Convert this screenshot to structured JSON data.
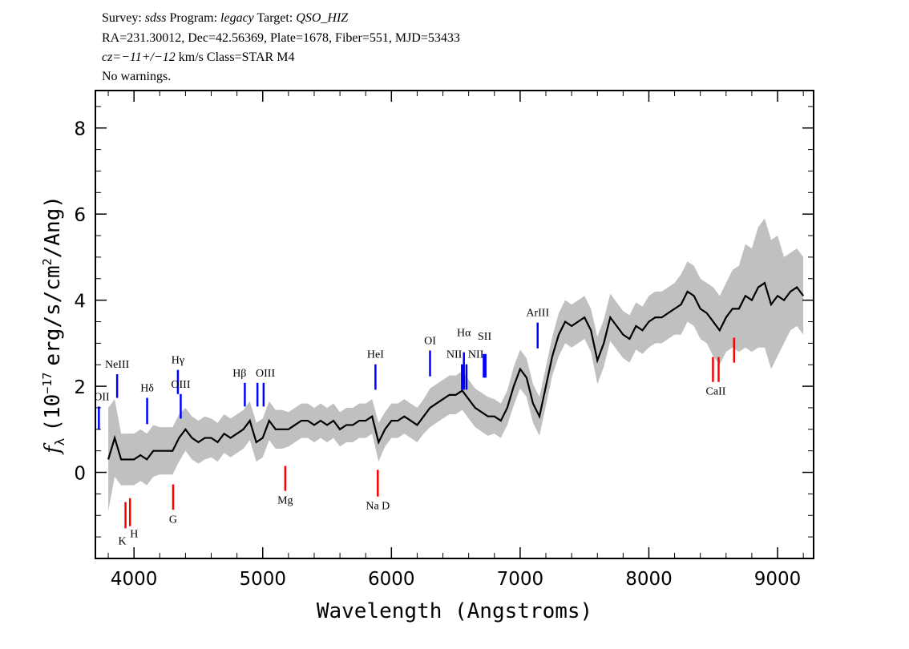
{
  "header": {
    "line1": {
      "survey_label": "Survey:",
      "survey": "sdss",
      "program_label": "Program:",
      "program": "legacy",
      "target_label": "Target:",
      "target": "QSO_HIZ"
    },
    "line2": "RA=231.30012, Dec=42.56369, Plate=1678, Fiber=551, MJD=53433",
    "line3": {
      "cz": "cz=−11+/−12",
      "rest": "km/s Class=STAR M4"
    },
    "line4": "No warnings."
  },
  "chart_data": {
    "type": "line",
    "xlabel": "Wavelength (Angstroms)",
    "ylabel": {
      "symbol": "f",
      "sub": "λ",
      "pre": "(10",
      "exp": "−17",
      "mid": "erg/s/cm",
      "exp2": "2",
      "post": "/Ang)"
    },
    "xlim": [
      3700,
      9280
    ],
    "ylim": [
      -2.0,
      8.87
    ],
    "xticks": [
      "4000",
      "5000",
      "6000",
      "7000",
      "8000",
      "9000"
    ],
    "yticks": [
      "0",
      "2",
      "4",
      "6",
      "8"
    ],
    "colors": {
      "flux": "#000000",
      "error_band": "#c0c0c0",
      "emission": "#0000ff",
      "absorption": "#ff0000"
    },
    "series": {
      "x": [
        3800,
        3850,
        3900,
        3950,
        4000,
        4050,
        4100,
        4150,
        4200,
        4250,
        4300,
        4350,
        4400,
        4450,
        4500,
        4550,
        4600,
        4650,
        4700,
        4750,
        4800,
        4850,
        4900,
        4950,
        5000,
        5050,
        5100,
        5150,
        5200,
        5250,
        5300,
        5350,
        5400,
        5450,
        5500,
        5550,
        5600,
        5650,
        5700,
        5750,
        5800,
        5850,
        5900,
        5950,
        6000,
        6050,
        6100,
        6150,
        6200,
        6250,
        6300,
        6350,
        6400,
        6450,
        6500,
        6550,
        6600,
        6650,
        6700,
        6750,
        6800,
        6850,
        6900,
        6950,
        7000,
        7050,
        7100,
        7150,
        7200,
        7250,
        7300,
        7350,
        7400,
        7450,
        7500,
        7550,
        7600,
        7650,
        7700,
        7750,
        7800,
        7850,
        7900,
        7950,
        8000,
        8050,
        8100,
        8150,
        8200,
        8250,
        8300,
        8350,
        8400,
        8450,
        8500,
        8550,
        8600,
        8650,
        8700,
        8750,
        8800,
        8850,
        8900,
        8950,
        9000,
        9050,
        9100,
        9150,
        9200
      ],
      "flux": [
        0.3,
        0.8,
        0.3,
        0.3,
        0.3,
        0.4,
        0.3,
        0.5,
        0.5,
        0.5,
        0.5,
        0.8,
        1.0,
        0.8,
        0.7,
        0.8,
        0.8,
        0.7,
        0.9,
        0.8,
        0.9,
        1.0,
        1.2,
        0.7,
        0.8,
        1.2,
        1.0,
        1.0,
        1.0,
        1.1,
        1.2,
        1.2,
        1.1,
        1.2,
        1.1,
        1.2,
        1.0,
        1.1,
        1.1,
        1.2,
        1.2,
        1.3,
        0.7,
        1.0,
        1.2,
        1.2,
        1.3,
        1.2,
        1.1,
        1.3,
        1.5,
        1.6,
        1.7,
        1.8,
        1.8,
        1.9,
        1.7,
        1.5,
        1.4,
        1.3,
        1.3,
        1.2,
        1.5,
        2.0,
        2.4,
        2.2,
        1.6,
        1.3,
        2.0,
        2.7,
        3.2,
        3.5,
        3.4,
        3.5,
        3.6,
        3.3,
        2.6,
        3.0,
        3.6,
        3.4,
        3.2,
        3.1,
        3.4,
        3.3,
        3.5,
        3.6,
        3.6,
        3.7,
        3.8,
        3.9,
        4.2,
        4.1,
        3.8,
        3.7,
        3.5,
        3.3,
        3.6,
        3.8,
        3.8,
        4.1,
        4.0,
        4.3,
        4.4,
        3.9,
        4.1,
        4.0,
        4.2,
        4.3,
        4.1
      ],
      "error": [
        1.2,
        0.9,
        0.6,
        0.6,
        0.6,
        0.6,
        0.6,
        0.6,
        0.55,
        0.55,
        0.55,
        0.55,
        0.5,
        0.5,
        0.5,
        0.5,
        0.45,
        0.45,
        0.45,
        0.45,
        0.45,
        0.45,
        0.45,
        0.45,
        0.45,
        0.45,
        0.45,
        0.45,
        0.4,
        0.4,
        0.4,
        0.4,
        0.4,
        0.4,
        0.4,
        0.4,
        0.4,
        0.4,
        0.4,
        0.4,
        0.4,
        0.4,
        0.45,
        0.4,
        0.4,
        0.4,
        0.4,
        0.4,
        0.4,
        0.4,
        0.45,
        0.45,
        0.45,
        0.45,
        0.45,
        0.45,
        0.45,
        0.45,
        0.45,
        0.45,
        0.4,
        0.4,
        0.4,
        0.45,
        0.45,
        0.45,
        0.45,
        0.45,
        0.45,
        0.45,
        0.5,
        0.5,
        0.5,
        0.5,
        0.5,
        0.5,
        0.55,
        0.55,
        0.55,
        0.55,
        0.55,
        0.55,
        0.55,
        0.55,
        0.6,
        0.6,
        0.6,
        0.6,
        0.6,
        0.7,
        0.7,
        0.7,
        0.7,
        0.7,
        0.8,
        0.8,
        0.8,
        0.9,
        1.0,
        1.2,
        1.2,
        1.4,
        1.5,
        1.5,
        1.4,
        1.0,
        0.9,
        0.9,
        0.9
      ]
    },
    "lines": [
      {
        "label": "OII",
        "kind": "emission",
        "wavelengths": [
          3727
        ],
        "y": [
          0.99,
          1.53
        ]
      },
      {
        "label": "NeIII",
        "kind": "emission",
        "wavelengths": [
          3869
        ],
        "y": [
          1.73,
          2.28
        ]
      },
      {
        "label": "Hδ",
        "kind": "emission",
        "wavelengths": [
          4102
        ],
        "y": [
          1.12,
          1.73
        ]
      },
      {
        "label": "Hγ",
        "kind": "emission",
        "wavelengths": [
          4341
        ],
        "y": [
          1.82,
          2.38
        ]
      },
      {
        "label": "OIII",
        "kind": "emission",
        "wavelengths": [
          4363
        ],
        "y": [
          1.25,
          1.82
        ]
      },
      {
        "label": "Hβ",
        "kind": "emission",
        "wavelengths": [
          4861
        ],
        "y": [
          1.53,
          2.08
        ]
      },
      {
        "label": "OIII",
        "kind": "emission",
        "wavelengths": [
          4959,
          5007
        ],
        "y": [
          1.53,
          2.08
        ]
      },
      {
        "label": "HeI",
        "kind": "emission",
        "wavelengths": [
          5876
        ],
        "y": [
          1.92,
          2.51
        ]
      },
      {
        "label": "OI",
        "kind": "emission",
        "wavelengths": [
          6300
        ],
        "y": [
          2.23,
          2.83
        ]
      },
      {
        "label": "NII",
        "kind": "emission",
        "wavelengths": [
          6548
        ],
        "y": [
          1.92,
          2.51
        ]
      },
      {
        "label": "Hα",
        "kind": "emission",
        "wavelengths": [
          6563
        ],
        "y": [
          1.92,
          2.79
        ]
      },
      {
        "label": "NII",
        "kind": "emission",
        "wavelengths": [
          6583
        ],
        "y": [
          1.92,
          2.51
        ]
      },
      {
        "label": "SII",
        "kind": "emission",
        "wavelengths": [
          6717,
          6731
        ],
        "y": [
          2.2,
          2.75
        ]
      },
      {
        "label": "ArIII",
        "kind": "emission",
        "wavelengths": [
          7136
        ],
        "y": [
          2.88,
          3.48
        ]
      },
      {
        "label": "K",
        "kind": "absorption",
        "wavelengths": [
          3934
        ],
        "y": [
          -1.3,
          -0.69
        ]
      },
      {
        "label": "H",
        "kind": "absorption",
        "wavelengths": [
          3969
        ],
        "y": [
          -1.25,
          -0.6
        ]
      },
      {
        "label": "G",
        "kind": "absorption",
        "wavelengths": [
          4304
        ],
        "y": [
          -0.87,
          -0.28
        ]
      },
      {
        "label": "Mg",
        "kind": "absorption",
        "wavelengths": [
          5175
        ],
        "y": [
          -0.43,
          0.15
        ]
      },
      {
        "label": "Na D",
        "kind": "absorption",
        "wavelengths": [
          5894
        ],
        "y": [
          -0.56,
          0.06
        ]
      },
      {
        "label": "CaII",
        "kind": "absorption",
        "wavelengths": [
          8498,
          8542
        ],
        "y": [
          2.1,
          2.68
        ]
      },
      {
        "label": "",
        "kind": "absorption",
        "wavelengths": [
          8662
        ],
        "y": [
          2.55,
          3.13
        ]
      }
    ]
  }
}
